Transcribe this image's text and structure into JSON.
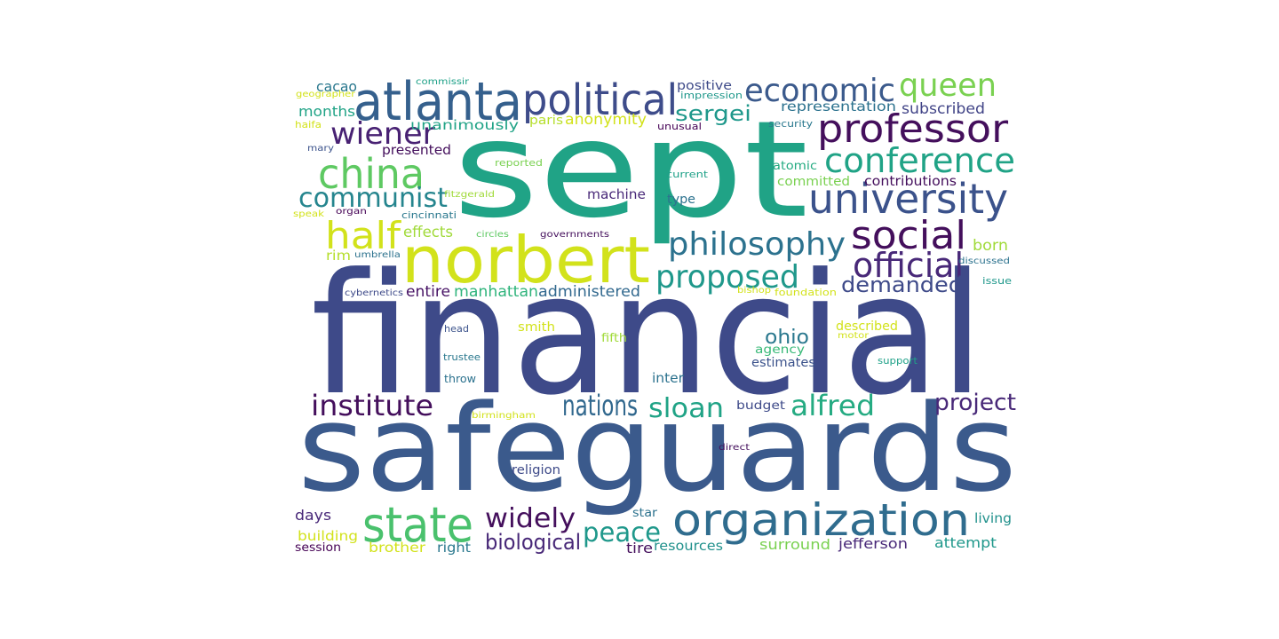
{
  "words": [
    {
      "text": "financial",
      "color": "#3e4a89"
    },
    {
      "text": "safeguards",
      "color": "#3b5a8c"
    },
    {
      "text": "sept",
      "color": "#20a386"
    },
    {
      "text": "norbert",
      "color": "#d2e21b"
    },
    {
      "text": "organization",
      "color": "#2f6c8e"
    },
    {
      "text": "state",
      "color": "#4ac16d"
    },
    {
      "text": "atlanta",
      "color": "#35608d"
    },
    {
      "text": "political",
      "color": "#3e4c8a"
    },
    {
      "text": "university",
      "color": "#3b528b"
    },
    {
      "text": "professor",
      "color": "#440f5c"
    },
    {
      "text": "china",
      "color": "#5ec962"
    },
    {
      "text": "economic",
      "color": "#3b5a8c"
    },
    {
      "text": "social",
      "color": "#440f5c"
    },
    {
      "text": "conference",
      "color": "#20a386"
    },
    {
      "text": "queen",
      "color": "#7ad151"
    },
    {
      "text": "philosophy",
      "color": "#2c728e"
    },
    {
      "text": "official",
      "color": "#482878"
    },
    {
      "text": "half",
      "color": "#d2e21b"
    },
    {
      "text": "wiener",
      "color": "#482173"
    },
    {
      "text": "communist",
      "color": "#25858e"
    },
    {
      "text": "proposed",
      "color": "#1f988b"
    },
    {
      "text": "institute",
      "color": "#440f5c"
    },
    {
      "text": "nations",
      "color": "#31688e"
    },
    {
      "text": "sloan",
      "color": "#20a386"
    },
    {
      "text": "alfred",
      "color": "#25ab82"
    },
    {
      "text": "project",
      "color": "#482878"
    },
    {
      "text": "widely",
      "color": "#440f5c"
    },
    {
      "text": "peace",
      "color": "#1f988b"
    },
    {
      "text": "biological",
      "color": "#482878"
    },
    {
      "text": "sergei",
      "color": "#1f988b"
    },
    {
      "text": "demanded",
      "color": "#3e4a89"
    },
    {
      "text": "ohio",
      "color": "#2a788e"
    },
    {
      "text": "effects",
      "color": "#a0da39"
    },
    {
      "text": "manhattan",
      "color": "#2fb47c"
    },
    {
      "text": "administered",
      "color": "#31688e"
    },
    {
      "text": "entire",
      "color": "#471365"
    },
    {
      "text": "subscribed",
      "color": "#414487"
    },
    {
      "text": "anonymity",
      "color": "#d2e21b"
    },
    {
      "text": "born",
      "color": "#a0da39"
    },
    {
      "text": "cacao",
      "color": "#2a788e"
    },
    {
      "text": "months",
      "color": "#20a386"
    },
    {
      "text": "unanimously",
      "color": "#20a386"
    },
    {
      "text": "presented",
      "color": "#440f5c"
    },
    {
      "text": "positive",
      "color": "#3e4a89"
    },
    {
      "text": "impression",
      "color": "#1f988b"
    },
    {
      "text": "representation",
      "color": "#2c728e"
    },
    {
      "text": "paris",
      "color": "#b5de2b"
    },
    {
      "text": "machine",
      "color": "#482878"
    },
    {
      "text": "type",
      "color": "#2c728e"
    },
    {
      "text": "atomic",
      "color": "#25ab82"
    },
    {
      "text": "committed",
      "color": "#7ad151"
    },
    {
      "text": "contributions",
      "color": "#440f5c"
    },
    {
      "text": "rim",
      "color": "#b5de2b"
    },
    {
      "text": "agency",
      "color": "#38b977"
    },
    {
      "text": "estimates",
      "color": "#3b528b"
    },
    {
      "text": "inter",
      "color": "#2c728e"
    },
    {
      "text": "budget",
      "color": "#3e4a89"
    },
    {
      "text": "smith",
      "color": "#d2e21b"
    },
    {
      "text": "fifth",
      "color": "#a0da39"
    },
    {
      "text": "described",
      "color": "#d2e21b"
    },
    {
      "text": "days",
      "color": "#482878"
    },
    {
      "text": "building",
      "color": "#d2e21b"
    },
    {
      "text": "session",
      "color": "#440154"
    },
    {
      "text": "brother",
      "color": "#d2e21b"
    },
    {
      "text": "right",
      "color": "#2a788e"
    },
    {
      "text": "religion",
      "color": "#3e4a89"
    },
    {
      "text": "star",
      "color": "#2c728e"
    },
    {
      "text": "tire",
      "color": "#440f5c"
    },
    {
      "text": "resources",
      "color": "#21918c"
    },
    {
      "text": "surround",
      "color": "#7ad151"
    },
    {
      "text": "jefferson",
      "color": "#482878"
    },
    {
      "text": "attempt",
      "color": "#1f988b"
    },
    {
      "text": "living",
      "color": "#21918c"
    },
    {
      "text": "commissir",
      "color": "#1fa188"
    },
    {
      "text": "geographer",
      "color": "#d2e21b"
    },
    {
      "text": "haifa",
      "color": "#d2e21b"
    },
    {
      "text": "mary",
      "color": "#3b528b"
    },
    {
      "text": "reported",
      "color": "#7ad151"
    },
    {
      "text": "fitzgerald",
      "color": "#a0da39"
    },
    {
      "text": "speak",
      "color": "#d2e21b"
    },
    {
      "text": "organ",
      "color": "#440154"
    },
    {
      "text": "cincinnati",
      "color": "#2a788e"
    },
    {
      "text": "circles",
      "color": "#5ec962"
    },
    {
      "text": "governments",
      "color": "#440f5c"
    },
    {
      "text": "umbrella",
      "color": "#2c728e"
    },
    {
      "text": "cybernetics",
      "color": "#3e4a89"
    },
    {
      "text": "unusual",
      "color": "#440154"
    },
    {
      "text": "security",
      "color": "#2a788e"
    },
    {
      "text": "current",
      "color": "#1fa188"
    },
    {
      "text": "discussed",
      "color": "#2c728e"
    },
    {
      "text": "issue",
      "color": "#1f988b"
    },
    {
      "text": "bishop",
      "color": "#d2e21b"
    },
    {
      "text": "foundation",
      "color": "#d2e21b"
    },
    {
      "text": "motor",
      "color": "#d2e21b"
    },
    {
      "text": "support",
      "color": "#1fa188"
    },
    {
      "text": "head",
      "color": "#3b528b"
    },
    {
      "text": "trustee",
      "color": "#2a788e"
    },
    {
      "text": "throw",
      "color": "#2c728e"
    },
    {
      "text": "birmingham",
      "color": "#d2e21b"
    },
    {
      "text": "direct",
      "color": "#440f5c"
    }
  ]
}
